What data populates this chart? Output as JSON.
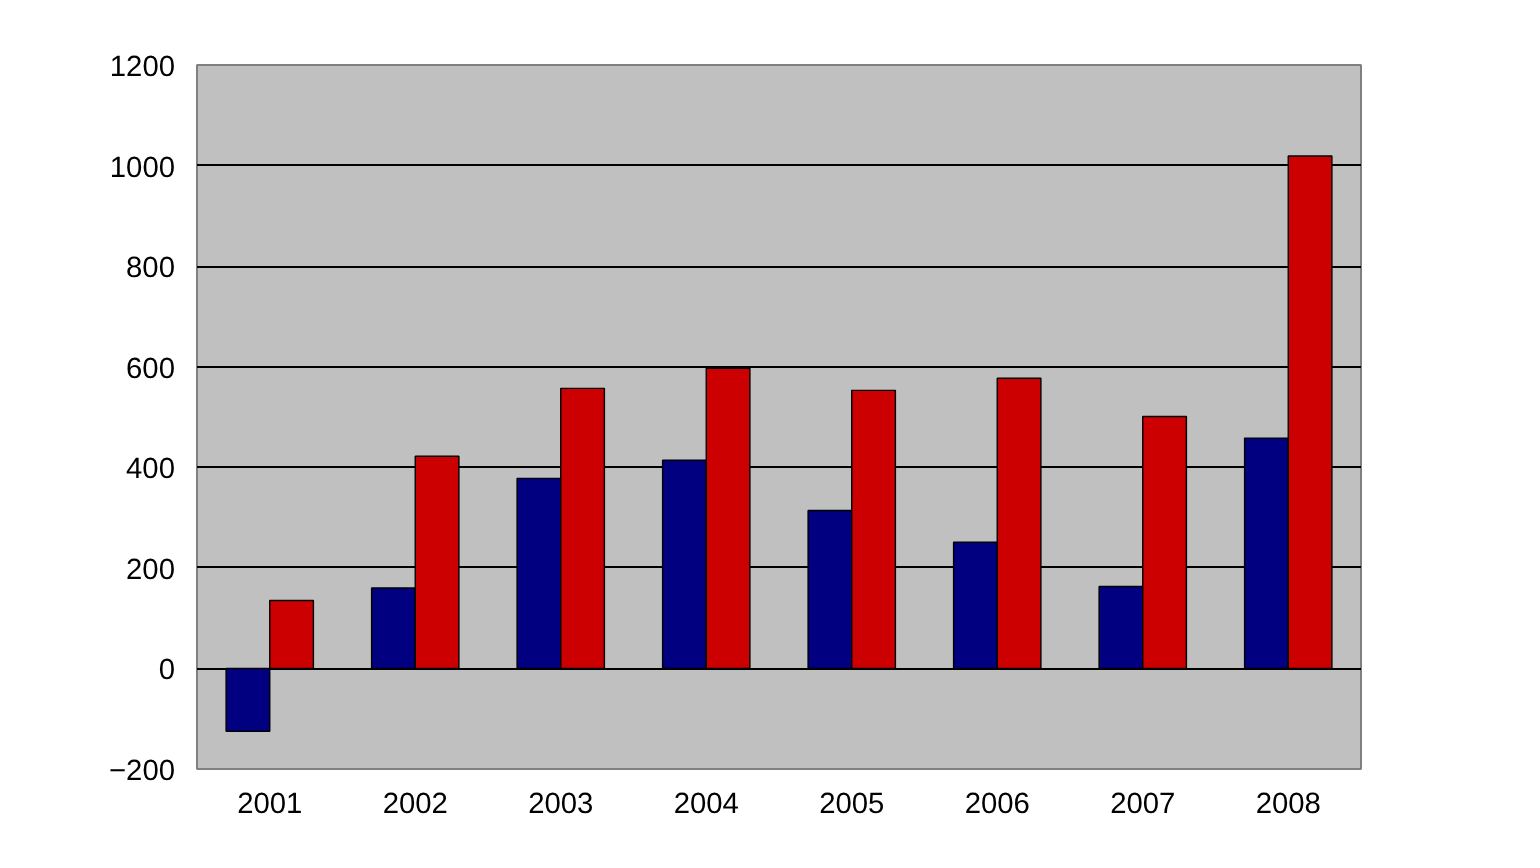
{
  "chart_data": {
    "type": "bar",
    "categories": [
      "2001",
      "2002",
      "2003",
      "2004",
      "2005",
      "2006",
      "2007",
      "2008"
    ],
    "series": [
      {
        "color": "#000080",
        "values": [
          -125,
          160,
          378,
          414,
          314,
          251,
          163,
          458
        ]
      },
      {
        "color": "#cc0000",
        "values": [
          135,
          422,
          557,
          597,
          553,
          577,
          501,
          1019
        ]
      }
    ],
    "ylim": [
      -200,
      1200
    ],
    "yticks": [
      -200,
      0,
      200,
      400,
      600,
      800,
      1000,
      1200
    ],
    "grid": "y"
  }
}
